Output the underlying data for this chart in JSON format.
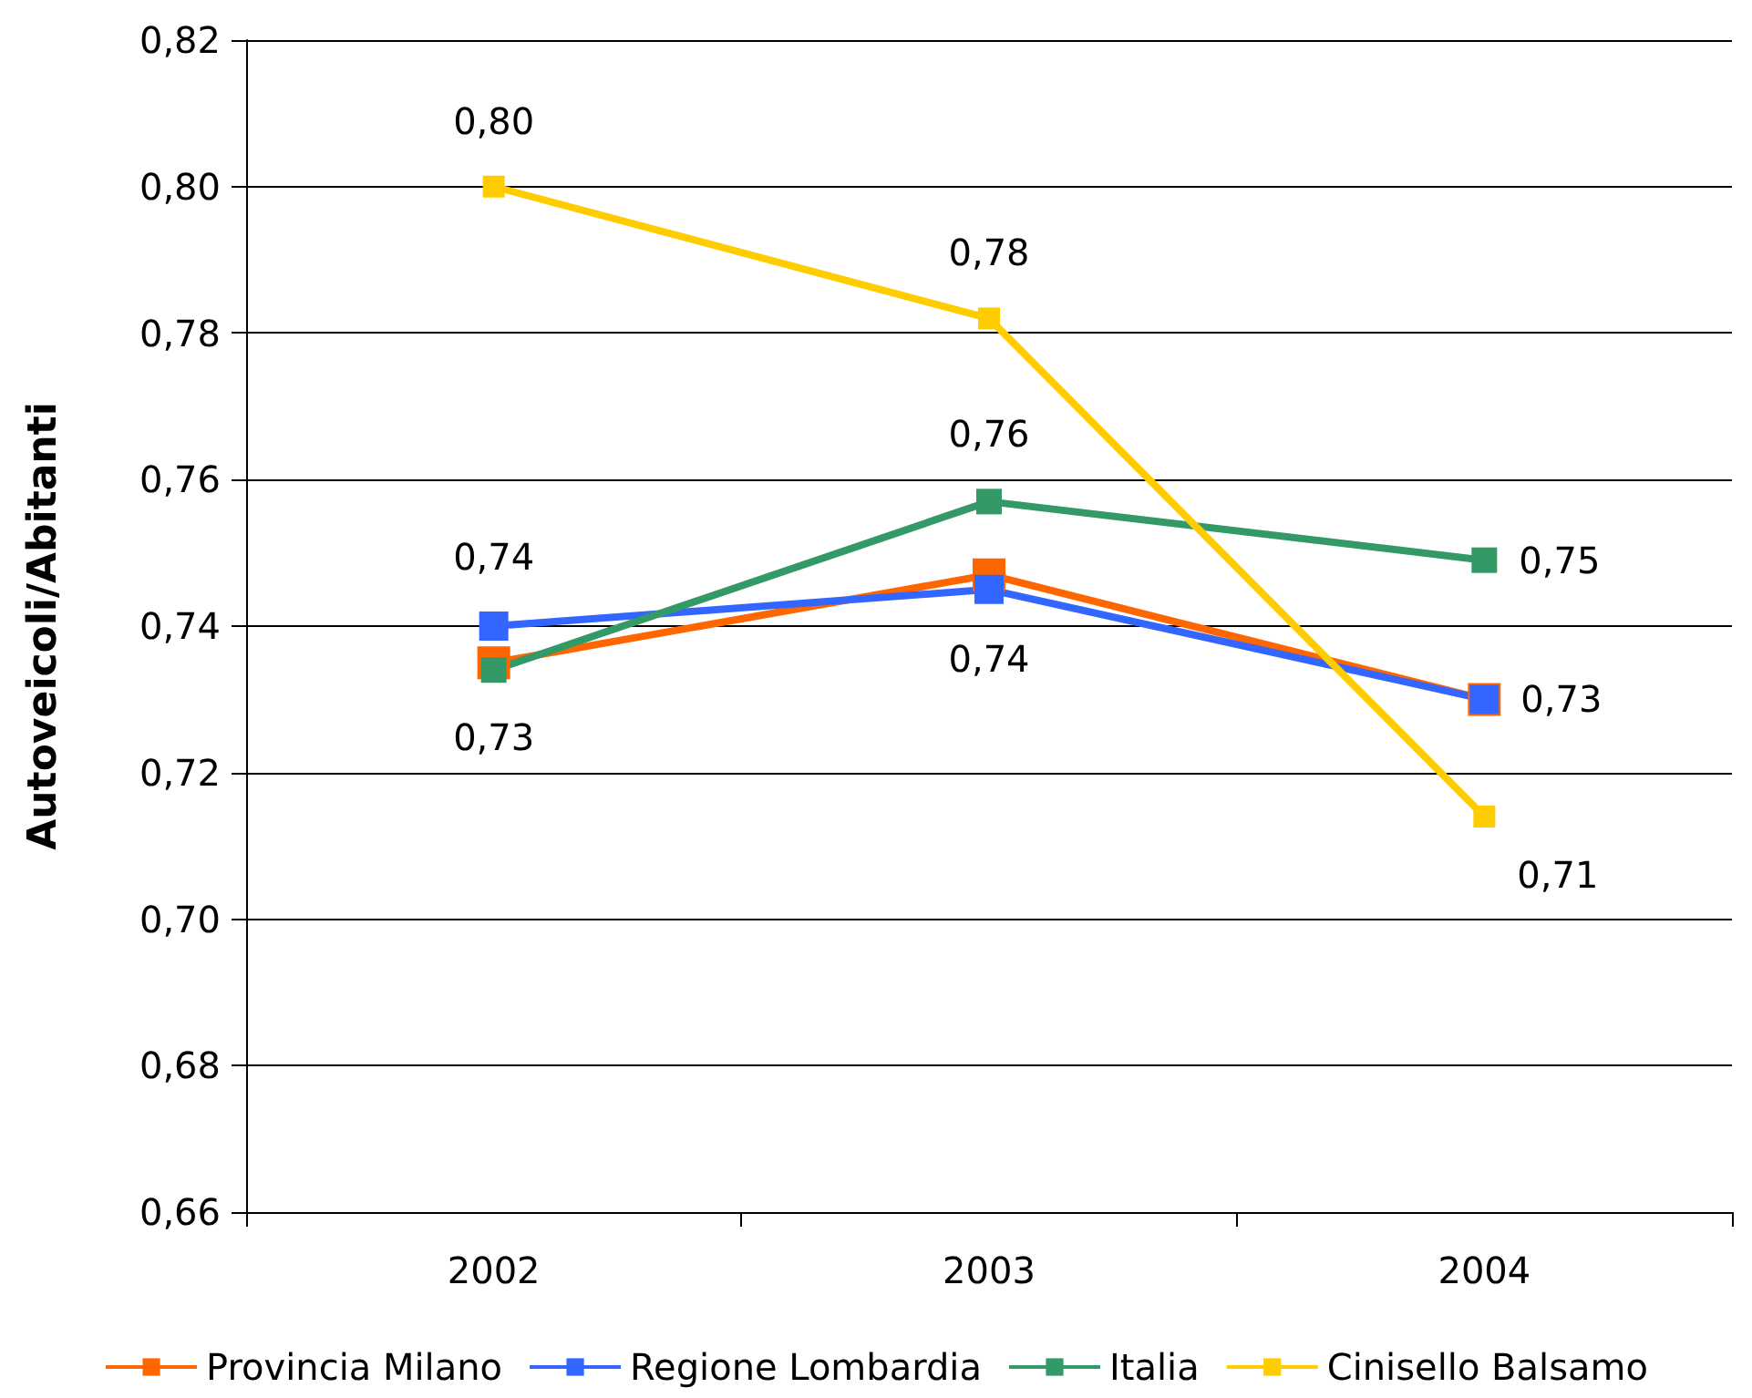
{
  "chart_data": {
    "type": "line",
    "ylabel": "Autoveicoli/Abitanti",
    "categories": [
      "2002",
      "2003",
      "2004"
    ],
    "series": [
      {
        "name": "Provincia Milano",
        "color": "#ff6600",
        "values": [
          0.735,
          0.747,
          0.73
        ]
      },
      {
        "name": "Regione Lombardia",
        "color": "#3366ff",
        "values": [
          0.74,
          0.745,
          0.73
        ],
        "value_labels": [
          "0,74",
          "0,74",
          "0,73"
        ]
      },
      {
        "name": "Italia",
        "color": "#339966",
        "values": [
          0.734,
          0.757,
          0.749
        ],
        "value_labels": [
          "0,73",
          "0,76",
          "0,75"
        ]
      },
      {
        "name": "Cinisello Balsamo",
        "color": "#ffcc00",
        "values": [
          0.8,
          0.782,
          0.714
        ],
        "value_labels": [
          "0,80",
          "0,78",
          "0,71"
        ]
      }
    ],
    "ylim": [
      0.66,
      0.82
    ],
    "yticks": [
      {
        "value": 0.66,
        "label": "0,66"
      },
      {
        "value": 0.68,
        "label": "0,68"
      },
      {
        "value": 0.7,
        "label": "0,70"
      },
      {
        "value": 0.72,
        "label": "0,72"
      },
      {
        "value": 0.74,
        "label": "0,74"
      },
      {
        "value": 0.76,
        "label": "0,76"
      },
      {
        "value": 0.78,
        "label": "0,78"
      },
      {
        "value": 0.8,
        "label": "0,80"
      },
      {
        "value": 0.82,
        "label": "0,82"
      }
    ],
    "grid": "y",
    "legend": "bottom",
    "marker": "square",
    "line_style": "solid"
  }
}
